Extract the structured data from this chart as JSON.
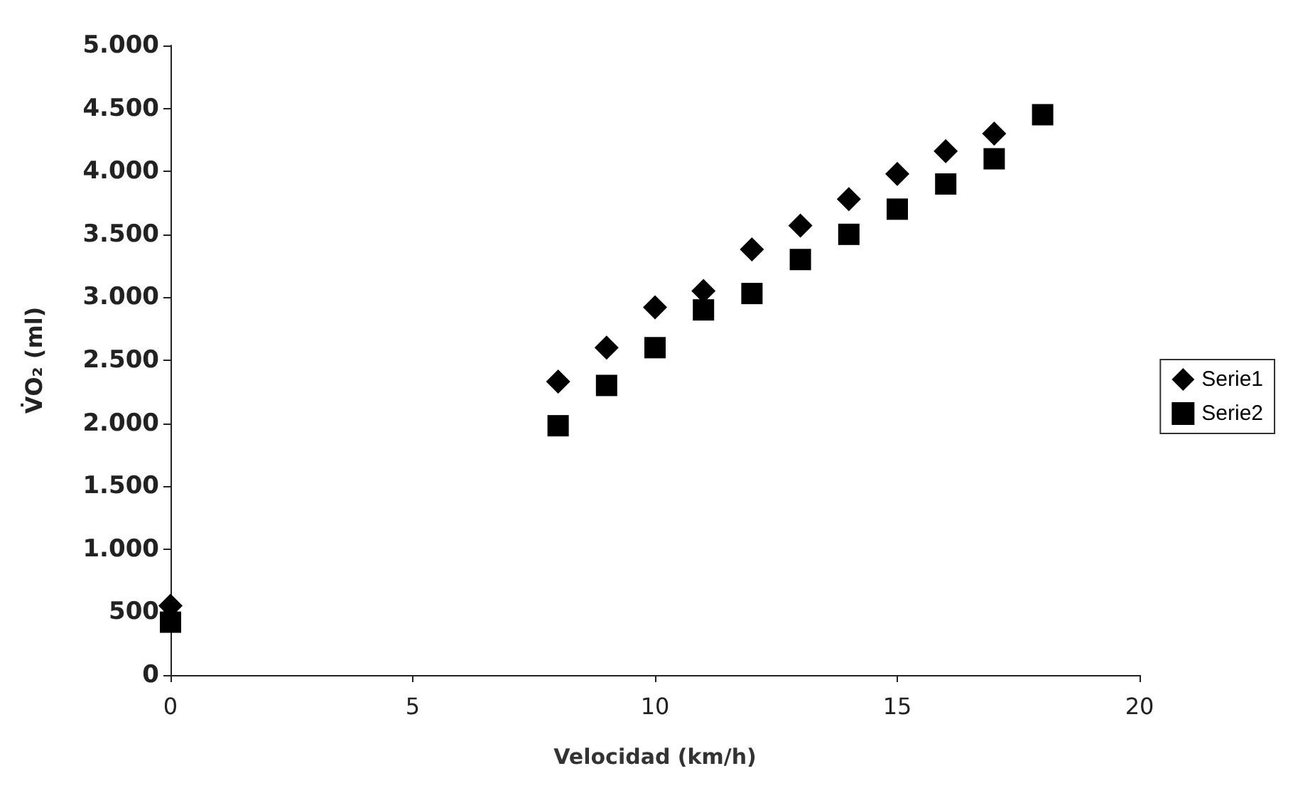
{
  "chart_data": {
    "type": "scatter",
    "xlabel": "Velocidad (km/h)",
    "ylabel": "V̇O₂ (ml)",
    "series": [
      {
        "name": "Serie1",
        "color": "#000000",
        "marker": "diamond",
        "x": [
          0,
          8,
          9,
          10,
          11,
          12,
          13,
          14,
          15,
          16,
          17
        ],
        "values": [
          550,
          2330,
          2600,
          2920,
          3050,
          3380,
          3570,
          3780,
          3980,
          4160,
          4300
        ]
      },
      {
        "name": "Serie2",
        "color": "#000000",
        "marker": "square",
        "x": [
          0,
          8,
          9,
          10,
          11,
          12,
          13,
          14,
          15,
          16,
          17,
          18
        ],
        "values": [
          420,
          1980,
          2300,
          2600,
          2900,
          3030,
          3300,
          3500,
          3700,
          3900,
          4100,
          4450
        ]
      }
    ],
    "xlim": [
      0,
      20
    ],
    "xticks": [
      0,
      5,
      10,
      15,
      20
    ],
    "ylim": [
      0,
      5000
    ],
    "yticks": [
      0,
      500,
      {
        "value": 1000,
        "label": "1.000"
      },
      {
        "value": 1500,
        "label": "1.500"
      },
      {
        "value": 2000,
        "label": "2.000"
      },
      {
        "value": 2500,
        "label": "2.500"
      },
      {
        "value": 3000,
        "label": "3.000"
      },
      {
        "value": 3500,
        "label": "3.500"
      },
      {
        "value": 4000,
        "label": "4.000"
      },
      {
        "value": 4500,
        "label": "4.500"
      },
      {
        "value": 5000,
        "label": "5.000"
      }
    ],
    "grid": false,
    "legend": "right"
  }
}
